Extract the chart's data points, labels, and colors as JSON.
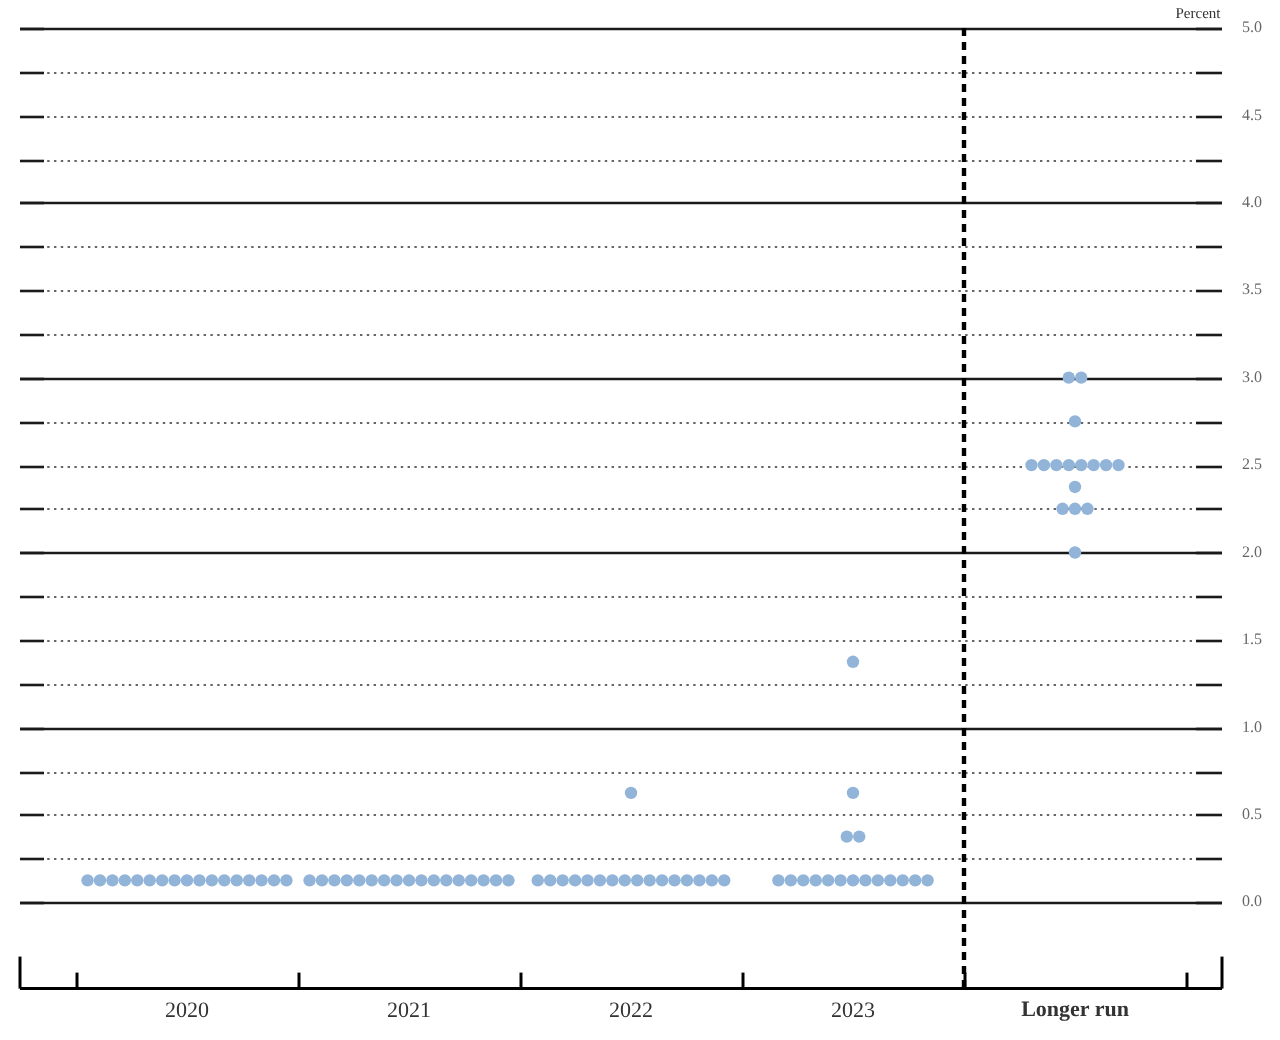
{
  "chart_data": {
    "type": "scatter",
    "ylabel": "Percent",
    "categories": [
      "2020",
      "2021",
      "2022",
      "2023",
      "Longer run"
    ],
    "series": [
      {
        "color": "#92b4d8",
        "values": [
          0.125,
          0.125,
          0.125,
          0.125,
          2.0
        ]
      },
      {
        "color": "#92b4d8",
        "values": [
          0.125,
          0.125,
          0.125,
          0.125,
          2.25
        ]
      },
      {
        "color": "#92b4d8",
        "values": [
          0.125,
          0.125,
          0.125,
          0.125,
          2.25
        ]
      },
      {
        "color": "#92b4d8",
        "values": [
          0.125,
          0.125,
          0.125,
          0.125,
          2.25
        ]
      },
      {
        "color": "#92b4d8",
        "values": [
          0.125,
          0.125,
          0.125,
          0.125,
          2.375
        ]
      },
      {
        "color": "#92b4d8",
        "values": [
          0.125,
          0.125,
          0.125,
          0.125,
          2.5
        ]
      },
      {
        "color": "#92b4d8",
        "values": [
          0.125,
          0.125,
          0.125,
          0.125,
          2.5
        ]
      },
      {
        "color": "#92b4d8",
        "values": [
          0.125,
          0.125,
          0.125,
          0.125,
          2.5
        ]
      },
      {
        "color": "#92b4d8",
        "values": [
          0.125,
          0.125,
          0.125,
          0.125,
          2.5
        ]
      },
      {
        "color": "#92b4d8",
        "values": [
          0.125,
          0.125,
          0.125,
          0.125,
          2.5
        ]
      },
      {
        "color": "#92b4d8",
        "values": [
          0.125,
          0.125,
          0.125,
          0.125,
          2.5
        ]
      },
      {
        "color": "#92b4d8",
        "values": [
          0.125,
          0.125,
          0.125,
          0.125,
          2.5
        ]
      },
      {
        "color": "#92b4d8",
        "values": [
          0.125,
          0.125,
          0.125,
          0.125,
          2.5
        ]
      },
      {
        "color": "#92b4d8",
        "values": [
          0.125,
          0.125,
          0.125,
          0.375,
          2.75
        ]
      },
      {
        "color": "#92b4d8",
        "values": [
          0.125,
          0.125,
          0.125,
          0.375,
          3.0
        ]
      },
      {
        "color": "#92b4d8",
        "values": [
          0.125,
          0.125,
          0.125,
          0.625,
          3.0
        ]
      },
      {
        "color": "#92b4d8",
        "values": [
          0.125,
          0.125,
          0.625,
          1.375,
          null
        ]
      }
    ],
    "ylim": [
      -0.5,
      5.0
    ],
    "yticks": [
      {
        "value": 0,
        "label": "0.0"
      },
      {
        "value": 0.25,
        "label": null
      },
      0.5,
      {
        "value": 0.75,
        "label": null
      },
      {
        "value": 1,
        "label": "1.0"
      },
      {
        "value": 1.25,
        "label": null
      },
      1.5,
      {
        "value": 1.75,
        "label": null
      },
      {
        "value": 2,
        "label": "2.0"
      },
      {
        "value": 2.25,
        "label": null
      },
      2.5,
      {
        "value": 2.75,
        "label": null
      },
      {
        "value": 3,
        "label": "3.0"
      },
      {
        "value": 3.25,
        "label": null
      },
      3.5,
      {
        "value": 3.75,
        "label": null
      },
      {
        "value": 4,
        "label": "4.0"
      },
      {
        "value": 4.25,
        "label": null
      },
      4.5,
      {
        "value": 4.75,
        "label": null
      },
      {
        "value": 5,
        "label": "5.0"
      }
    ],
    "grid": "y",
    "marker": "circle",
    "ref_lines": [
      {
        "axis": "x",
        "value": "Longer run",
        "color": "#000000",
        "line_style": "dashed"
      }
    ]
  }
}
